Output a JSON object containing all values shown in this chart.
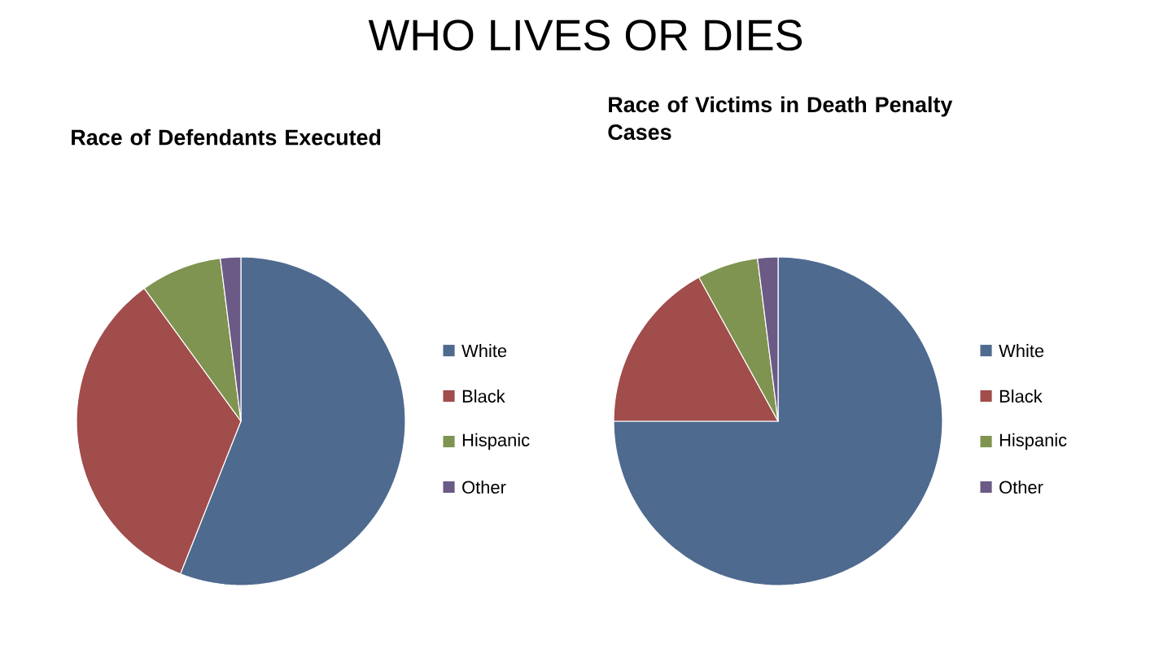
{
  "chart_data": [
    {
      "type": "pie",
      "title": "Race of Defendants Executed",
      "annotations": [
        "WHO LIVES OR DIES"
      ],
      "categories": [
        "White",
        "Black",
        "Hispanic",
        "Other"
      ],
      "values": [
        56,
        34,
        8,
        2
      ],
      "colors": [
        "#4f6a8f",
        "#a04d4b",
        "#7f9450",
        "#6a5a85"
      ],
      "legend": "right"
    },
    {
      "type": "pie",
      "title": "Race of Victims in Death Penalty Cases",
      "categories": [
        "White",
        "Black",
        "Hispanic",
        "Other"
      ],
      "values": [
        75,
        17,
        6,
        2
      ],
      "colors": [
        "#4f6a8f",
        "#a04d4b",
        "#7f9450",
        "#6a5a85"
      ],
      "legend": "right"
    }
  ]
}
